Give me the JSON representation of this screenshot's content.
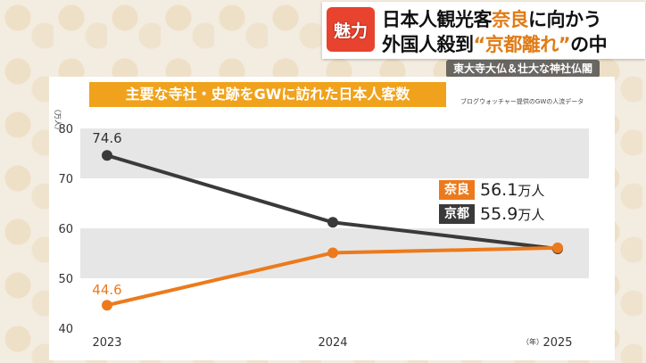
{
  "telop": {
    "badge": "魅力",
    "line1_a": "日本人観光客",
    "line1_b": "奈良",
    "line1_c": "に向かう",
    "line2_a": "外国人殺到",
    "line2_b": "“京都離れ”",
    "line2_c": "の中",
    "subcaption": "東大寺大仏＆壮大な神社仏閣"
  },
  "source_note": "ブログウォッチャー提供のGWの人流データ",
  "colors": {
    "nara": "#ec7a1c",
    "kyoto": "#3a3a3a",
    "title_bg": "#f0a21c",
    "badge_bg": "#e8432e"
  },
  "chart_data": {
    "type": "line",
    "title": "主要な寺社・史跡をGWに訪れた日本人客数",
    "y_unit": "（万人）",
    "x_unit": "（年）",
    "x": [
      "2023",
      "2024",
      "2025"
    ],
    "yticks": [
      "40",
      "50",
      "60",
      "70",
      "80"
    ],
    "ylim": [
      40,
      80
    ],
    "grid": "bands",
    "series": [
      {
        "name": "京都",
        "values": [
          74.6,
          61.2,
          55.9
        ],
        "color": "#3a3a3a",
        "start_label": "74.6"
      },
      {
        "name": "奈良",
        "values": [
          44.6,
          55.1,
          56.1
        ],
        "color": "#ec7a1c",
        "start_label": "44.6"
      }
    ],
    "legend": [
      {
        "name": "奈良",
        "value": "56.1",
        "unit": "万人",
        "color": "#ec7a1c"
      },
      {
        "name": "京都",
        "value": "55.9",
        "unit": "万人",
        "color": "#3a3a3a"
      }
    ],
    "legend_placement": "right"
  }
}
